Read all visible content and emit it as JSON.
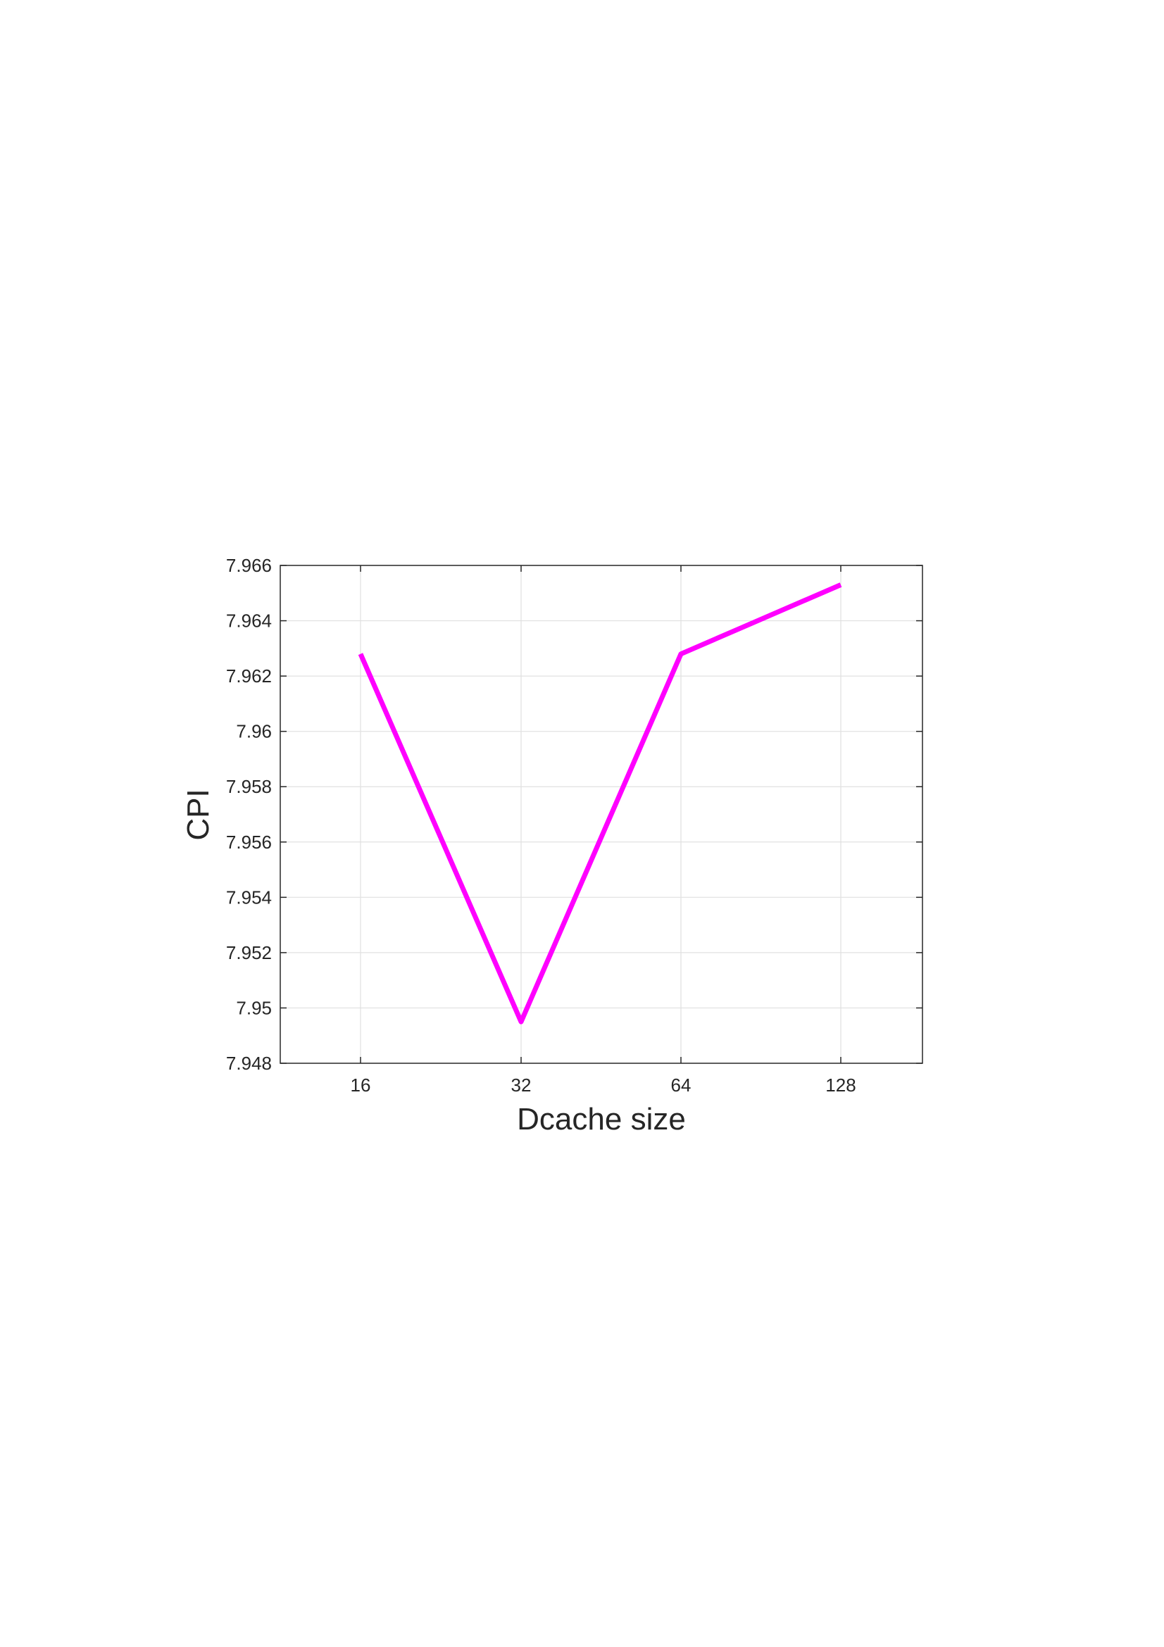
{
  "chart_data": {
    "type": "line",
    "title": "",
    "xlabel": "Dcache size",
    "ylabel": "CPI",
    "categories": [
      "16",
      "32",
      "64",
      "128"
    ],
    "series": [
      {
        "values": [
          7.9628,
          7.9495,
          7.9628,
          7.9653
        ],
        "color": "#ff00ff"
      }
    ],
    "ylim": [
      7.948,
      7.966
    ],
    "yticks": [
      7.948,
      7.95,
      7.952,
      7.954,
      7.956,
      7.958,
      7.96,
      7.962,
      7.964,
      7.966
    ],
    "ytick_labels": [
      "7.948",
      "7.95",
      "7.952",
      "7.954",
      "7.956",
      "7.958",
      "7.96",
      "7.962",
      "7.964",
      "7.966"
    ],
    "grid": true,
    "legend": "none",
    "colors": {
      "axis": "#262626",
      "grid": "#e0e0e0",
      "line": "#ff00ff"
    }
  }
}
